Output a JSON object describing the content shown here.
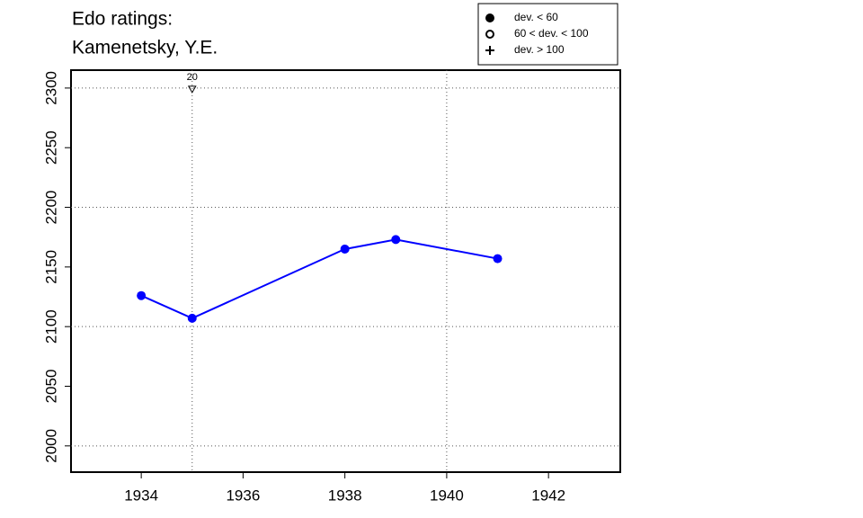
{
  "chart_data": {
    "type": "line",
    "title": [
      "Edo ratings:",
      "Kamenetsky, Y.E."
    ],
    "x": [
      1934,
      1935,
      1938,
      1939,
      1941
    ],
    "series": [
      {
        "color": "#0000ff",
        "marker": "filled-circle",
        "values": [
          2126,
          2107,
          2165,
          2173,
          2157
        ]
      }
    ],
    "xlim": [
      1932.62,
      1943.41
    ],
    "ylim": [
      1978,
      2315
    ],
    "xticks": [
      1934,
      1936,
      1938,
      1940,
      1942
    ],
    "yticks": [
      2000,
      2050,
      2100,
      2150,
      2200,
      2250,
      2300
    ],
    "xgrid": [
      1935,
      1940
    ],
    "ygrid": [
      2000,
      2100,
      2200,
      2300
    ],
    "annotations": [
      {
        "x": 1935,
        "y": 2300,
        "text": "20",
        "symbol": "down-triangle"
      }
    ],
    "legend": [
      {
        "symbol": "filled-circle",
        "label": "dev. < 60"
      },
      {
        "symbol": "open-circle",
        "label": "60 < dev. < 100"
      },
      {
        "symbol": "plus",
        "label": "dev. > 100"
      }
    ]
  }
}
